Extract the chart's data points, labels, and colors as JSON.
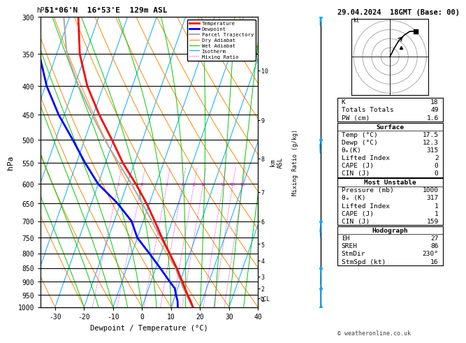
{
  "title_left": "51°06'N  16°53'E  129m ASL",
  "title_right": "29.04.2024  18GMT (Base: 00)",
  "xlabel": "Dewpoint / Temperature (°C)",
  "ylabel": "hPa",
  "pressure_levels": [
    300,
    350,
    400,
    450,
    500,
    550,
    600,
    650,
    700,
    750,
    800,
    850,
    900,
    950,
    1000
  ],
  "pressure_ticks": [
    300,
    350,
    400,
    450,
    500,
    550,
    600,
    650,
    700,
    750,
    800,
    850,
    900,
    950,
    1000
  ],
  "temp_min": -35,
  "temp_max": 40,
  "temp_ticks": [
    -30,
    -20,
    -10,
    0,
    10,
    20,
    30,
    40
  ],
  "skew_factor": 35,
  "temperature": {
    "pressure": [
      1000,
      975,
      950,
      925,
      900,
      850,
      800,
      750,
      700,
      650,
      600,
      550,
      500,
      450,
      400,
      350,
      300
    ],
    "temp": [
      17.5,
      16.0,
      14.2,
      12.5,
      10.8,
      7.2,
      3.0,
      -1.5,
      -6.0,
      -11.0,
      -17.0,
      -24.0,
      -30.5,
      -38.0,
      -45.5,
      -52.0,
      -57.0
    ],
    "color": "#ff0000",
    "linewidth": 2.0
  },
  "dewpoint": {
    "pressure": [
      1000,
      975,
      950,
      925,
      900,
      850,
      800,
      750,
      700,
      650,
      600,
      550,
      500,
      450,
      400,
      350,
      300
    ],
    "temp": [
      12.3,
      11.5,
      10.2,
      9.0,
      6.5,
      1.5,
      -4.0,
      -10.0,
      -14.0,
      -21.0,
      -30.0,
      -37.0,
      -44.0,
      -52.0,
      -59.5,
      -66.0,
      -71.0
    ],
    "color": "#0000ff",
    "linewidth": 2.0
  },
  "parcel": {
    "pressure": [
      1000,
      975,
      950,
      925,
      900,
      875,
      850,
      825,
      800,
      775,
      750,
      700,
      650,
      600,
      550,
      500,
      450,
      400,
      350,
      300
    ],
    "temp": [
      17.5,
      15.5,
      13.8,
      12.0,
      10.3,
      8.5,
      6.8,
      4.8,
      2.8,
      0.5,
      -2.0,
      -7.0,
      -12.5,
      -18.5,
      -25.5,
      -33.0,
      -40.5,
      -48.5,
      -56.5,
      -62.0
    ],
    "color": "#aaaaaa",
    "linewidth": 1.5
  },
  "mixing_ratio_values": [
    1,
    2,
    4,
    6,
    8,
    10,
    16,
    20,
    25
  ],
  "km_pressures": [
    965,
    925,
    880,
    825,
    770,
    700,
    620,
    540,
    460,
    375
  ],
  "km_labels": [
    "1",
    "2",
    "3",
    "4",
    "5",
    "6",
    "7",
    "8",
    "9",
    "10"
  ],
  "lcl_pressure": 965,
  "wind_barb_pressures": [
    300,
    500,
    700,
    850,
    925,
    1000
  ],
  "wind_barb_speeds": [
    28,
    20,
    15,
    10,
    8,
    5
  ],
  "wind_barb_dirs": [
    270,
    250,
    230,
    200,
    180,
    160
  ],
  "stats": {
    "K": 18,
    "Totals_Totals": 49,
    "PW_cm": 1.6,
    "Surface_Temp": 17.5,
    "Surface_Dewp": 12.3,
    "Surface_theta_e": 315,
    "Surface_Lifted_Index": 2,
    "Surface_CAPE": 0,
    "Surface_CIN": 0,
    "MU_Pressure": 1000,
    "MU_theta_e": 317,
    "MU_Lifted_Index": 1,
    "MU_CAPE": 1,
    "MU_CIN": 159,
    "Hodograph_EH": 27,
    "Hodograph_SREH": 86,
    "StmDir": "230°",
    "StmSpd_kt": 16
  },
  "bg_color": "#ffffff",
  "legend_items": [
    {
      "label": "Temperature",
      "color": "#ff0000",
      "lw": 2.0,
      "ls": "-"
    },
    {
      "label": "Dewpoint",
      "color": "#0000ff",
      "lw": 2.0,
      "ls": "-"
    },
    {
      "label": "Parcel Trajectory",
      "color": "#aaaaaa",
      "lw": 1.5,
      "ls": "-"
    },
    {
      "label": "Dry Adiabat",
      "color": "#ff8800",
      "lw": 0.8,
      "ls": "-"
    },
    {
      "label": "Wet Adiabat",
      "color": "#00cc00",
      "lw": 0.8,
      "ls": "-"
    },
    {
      "label": "Isotherm",
      "color": "#00aaff",
      "lw": 0.8,
      "ls": "-"
    },
    {
      "label": "Mixing Ratio",
      "color": "#ff00ff",
      "lw": 0.8,
      "ls": ":"
    }
  ]
}
